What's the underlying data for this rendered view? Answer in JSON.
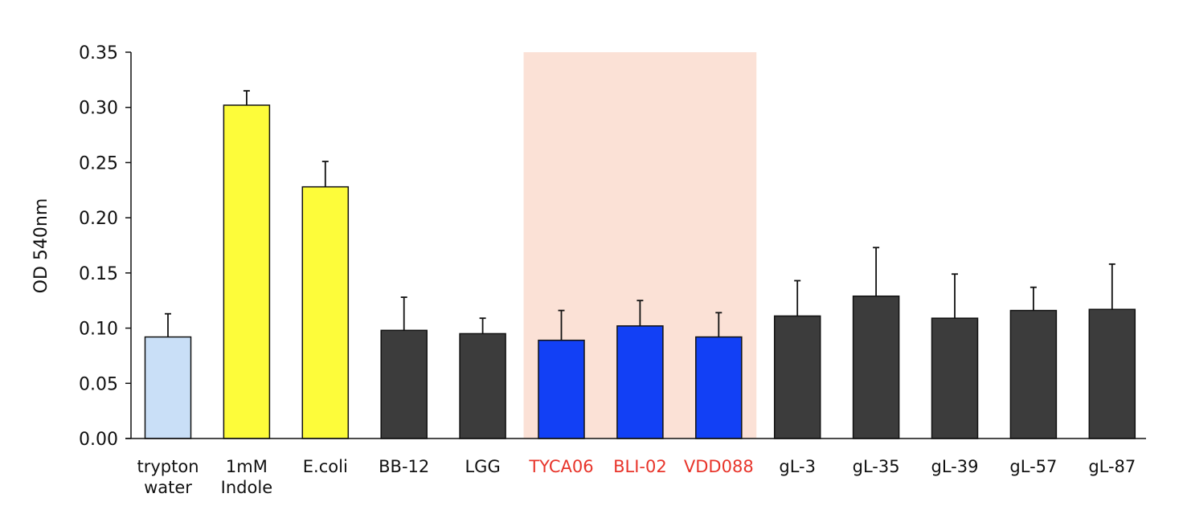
{
  "chart_data": {
    "type": "bar",
    "title": "",
    "xlabel": "",
    "ylabel": "OD 540nm",
    "ylim": [
      0,
      0.35
    ],
    "yticks": [
      "0.00",
      "0.05",
      "0.10",
      "0.15",
      "0.20",
      "0.25",
      "0.30",
      "0.35"
    ],
    "grid": false,
    "legend": "none",
    "categories": [
      [
        "trypton",
        "water"
      ],
      [
        "1mM",
        "Indole"
      ],
      [
        "E.coli"
      ],
      [
        "BB-12"
      ],
      [
        "LGG"
      ],
      [
        "TYCA06"
      ],
      [
        "BLI-02"
      ],
      [
        "VDD088"
      ],
      [
        "gL-3"
      ],
      [
        "gL-35"
      ],
      [
        "gL-39"
      ],
      [
        "gL-57"
      ],
      [
        "gL-87"
      ]
    ],
    "values": [
      0.092,
      0.302,
      0.228,
      0.098,
      0.095,
      0.089,
      0.102,
      0.092,
      0.111,
      0.129,
      0.109,
      0.116,
      0.117
    ],
    "errors": [
      0.021,
      0.013,
      0.023,
      0.03,
      0.014,
      0.027,
      0.023,
      0.022,
      0.032,
      0.044,
      0.04,
      0.021,
      0.041
    ],
    "bar_colors": [
      "#c9dff7",
      "#fdfc3a",
      "#fdfc3a",
      "#3c3c3c",
      "#3c3c3c",
      "#1240f5",
      "#1240f5",
      "#1240f5",
      "#3c3c3c",
      "#3c3c3c",
      "#3c3c3c",
      "#3c3c3c",
      "#3c3c3c"
    ],
    "label_colors": [
      "#111111",
      "#111111",
      "#111111",
      "#111111",
      "#111111",
      "#e8342a",
      "#e8342a",
      "#e8342a",
      "#111111",
      "#111111",
      "#111111",
      "#111111",
      "#111111"
    ],
    "highlight": {
      "from_index": 5,
      "to_index": 7,
      "color": "#fbe1d6"
    }
  }
}
